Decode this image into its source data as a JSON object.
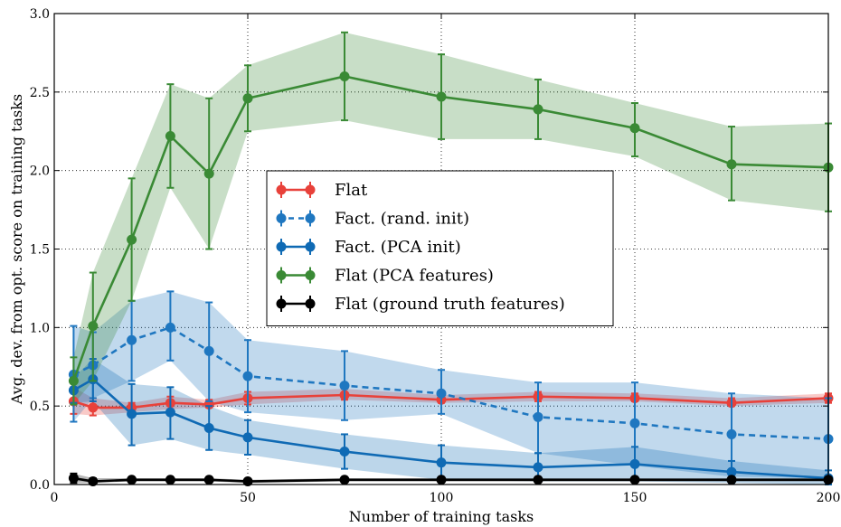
{
  "chart_data": {
    "type": "line",
    "xlabel": "Number of training tasks",
    "ylabel": "Avg. dev. from opt. score on training tasks",
    "xlim": [
      0,
      200
    ],
    "ylim": [
      0.0,
      3.0
    ],
    "xticks": [
      0,
      50,
      100,
      150,
      200
    ],
    "yticks": [
      0.0,
      0.5,
      1.0,
      1.5,
      2.0,
      2.5,
      3.0
    ],
    "xtick_labels": [
      "0",
      "50",
      "100",
      "150",
      "200"
    ],
    "ytick_labels": [
      "0.0",
      "0.5",
      "1.0",
      "1.5",
      "2.0",
      "2.5",
      "3.0"
    ],
    "grid": true,
    "legend_position": "center-left",
    "x": [
      5,
      10,
      20,
      30,
      40,
      50,
      75,
      100,
      125,
      150,
      175,
      200
    ],
    "series": [
      {
        "name": "Flat",
        "color": "#e8413a",
        "style": "solid",
        "y": [
          0.53,
          0.49,
          0.49,
          0.52,
          0.51,
          0.55,
          0.57,
          0.54,
          0.56,
          0.55,
          0.52,
          0.55
        ],
        "lower": [
          0.45,
          0.44,
          0.46,
          0.48,
          0.49,
          0.51,
          0.54,
          0.52,
          0.53,
          0.53,
          0.5,
          0.52
        ],
        "upper": [
          0.62,
          0.55,
          0.52,
          0.56,
          0.54,
          0.59,
          0.61,
          0.57,
          0.59,
          0.58,
          0.55,
          0.58
        ]
      },
      {
        "name": "Fact. (rand. init)",
        "color": "#1f77c0",
        "style": "dashed",
        "y": [
          0.7,
          0.76,
          0.92,
          1.0,
          0.85,
          0.69,
          0.63,
          0.58,
          0.43,
          0.39,
          0.32,
          0.29
        ],
        "lower": [
          0.4,
          0.55,
          0.66,
          0.79,
          0.53,
          0.46,
          0.41,
          0.45,
          0.2,
          0.12,
          0.05,
          0.04
        ],
        "upper": [
          1.01,
          0.97,
          1.17,
          1.23,
          1.16,
          0.92,
          0.85,
          0.73,
          0.65,
          0.65,
          0.58,
          0.55
        ]
      },
      {
        "name": "Fact. (PCA init)",
        "color": "#0f6ab4",
        "style": "solid",
        "y": [
          0.6,
          0.67,
          0.45,
          0.46,
          0.36,
          0.3,
          0.21,
          0.14,
          0.11,
          0.13,
          0.08,
          0.04
        ],
        "lower": [
          0.52,
          0.53,
          0.25,
          0.29,
          0.22,
          0.19,
          0.1,
          0.03,
          0.02,
          0.02,
          0.01,
          0.0
        ],
        "upper": [
          0.68,
          0.8,
          0.64,
          0.62,
          0.5,
          0.41,
          0.32,
          0.25,
          0.2,
          0.24,
          0.15,
          0.09
        ]
      },
      {
        "name": "Flat (PCA features)",
        "color": "#3a8a35",
        "style": "solid",
        "y": [
          0.66,
          1.01,
          1.56,
          2.22,
          1.98,
          2.46,
          2.6,
          2.47,
          2.39,
          2.27,
          2.04,
          2.02
        ],
        "lower": [
          0.51,
          0.66,
          1.17,
          1.89,
          1.5,
          2.25,
          2.32,
          2.2,
          2.2,
          2.09,
          1.81,
          1.74
        ],
        "upper": [
          0.81,
          1.35,
          1.95,
          2.55,
          2.46,
          2.67,
          2.88,
          2.74,
          2.58,
          2.43,
          2.28,
          2.3
        ]
      },
      {
        "name": "Flat (ground truth features)",
        "color": "#000000",
        "style": "solid",
        "y": [
          0.04,
          0.02,
          0.03,
          0.03,
          0.03,
          0.02,
          0.03,
          0.03,
          0.03,
          0.03,
          0.03,
          0.03
        ],
        "lower": [
          0.01,
          0.01,
          0.02,
          0.02,
          0.02,
          0.01,
          0.02,
          0.02,
          0.02,
          0.02,
          0.02,
          0.02
        ],
        "upper": [
          0.07,
          0.04,
          0.04,
          0.04,
          0.04,
          0.03,
          0.04,
          0.04,
          0.04,
          0.04,
          0.04,
          0.04
        ]
      }
    ]
  }
}
